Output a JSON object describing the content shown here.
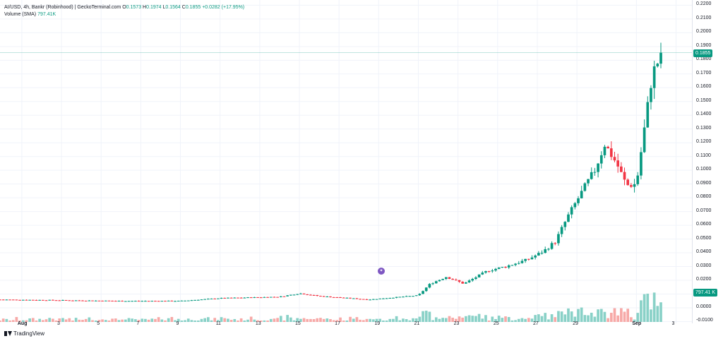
{
  "legend": {
    "symbol": "AI/USD, 4h, Bankr (Robinhood)",
    "sep": "|",
    "source": "GeckoTerminal.com",
    "o_label": "O",
    "o_val": "0.1573",
    "h_label": "H",
    "h_val": "0.1974",
    "l_label": "L",
    "l_val": "0.1564",
    "c_label": "C",
    "c_val": "0.1855",
    "change": "+0.0282 (+17.95%)",
    "volume_label": "Volume (SMA)",
    "volume_val": "797.41K"
  },
  "price_tag": "0.1855",
  "volume_tag": "797.41 K",
  "event_icon": "gecko-event-icon",
  "branding": "TradingView",
  "colors": {
    "up": "#089981",
    "down": "#f23645",
    "vol_up": "#89d1c7",
    "vol_down": "#f7a9a7",
    "grid": "#f0f3fa",
    "lastline": "#089981"
  },
  "chart_data": {
    "type": "candlestick",
    "title": "AI/USD, 4h, Bankr (Robinhood)",
    "y_ticks": [
      "0.2200",
      "0.2100",
      "0.2000",
      "0.1900",
      "0.1800",
      "0.1700",
      "0.1600",
      "0.1500",
      "0.1400",
      "0.1300",
      "0.1200",
      "0.1100",
      "0.1000",
      "0.0900",
      "0.0800",
      "0.0700",
      "0.0600",
      "0.0500",
      "0.0400",
      "0.0300",
      "0.0200",
      "0.0100",
      "0.0000",
      "-0.0100"
    ],
    "ylim": [
      -0.0113,
      0.2238
    ],
    "x_ticks": [
      "Aug",
      "3",
      "5",
      "7",
      "9",
      "11",
      "13",
      "15",
      "17",
      "19",
      "21",
      "23",
      "25",
      "27",
      "29",
      "Sep",
      "3"
    ],
    "x_tick_days": [
      0,
      2,
      4,
      6,
      8,
      10,
      12,
      14,
      16,
      18,
      20,
      22,
      24,
      26,
      28,
      31,
      33
    ],
    "x_start_day": 0,
    "candles_per_day": 6,
    "x_domain_days": [
      -1.1,
      33.8
    ],
    "last_close": 0.1855,
    "anchors": [
      {
        "day": -1.1,
        "price": 0.006
      },
      {
        "day": 5,
        "price": 0.005
      },
      {
        "day": 8,
        "price": 0.005
      },
      {
        "day": 10,
        "price": 0.007
      },
      {
        "day": 13,
        "price": 0.008
      },
      {
        "day": 14,
        "price": 0.0105
      },
      {
        "day": 15,
        "price": 0.0085
      },
      {
        "day": 17.5,
        "price": 0.006
      },
      {
        "day": 20,
        "price": 0.009
      },
      {
        "day": 20.6,
        "price": 0.0175
      },
      {
        "day": 21.4,
        "price": 0.0225
      },
      {
        "day": 22.3,
        "price": 0.0175
      },
      {
        "day": 23.5,
        "price": 0.027
      },
      {
        "day": 24.4,
        "price": 0.03
      },
      {
        "day": 25.5,
        "price": 0.035
      },
      {
        "day": 26.3,
        "price": 0.041
      },
      {
        "day": 26.9,
        "price": 0.048
      },
      {
        "day": 27.6,
        "price": 0.068
      },
      {
        "day": 28.4,
        "price": 0.088
      },
      {
        "day": 28.9,
        "price": 0.1
      },
      {
        "day": 29.4,
        "price": 0.119
      },
      {
        "day": 30.0,
        "price": 0.105
      },
      {
        "day": 30.5,
        "price": 0.089
      },
      {
        "day": 31.0,
        "price": 0.09
      },
      {
        "day": 31.4,
        "price": 0.13
      },
      {
        "day": 31.8,
        "price": 0.17
      },
      {
        "day": 32.3,
        "price": 0.1855
      }
    ]
  }
}
